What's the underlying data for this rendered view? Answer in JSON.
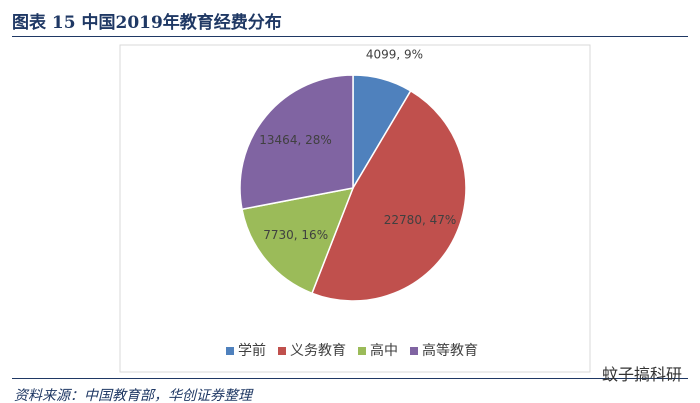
{
  "header": {
    "title": "图表 15 中国2019年教育经费分布"
  },
  "chart_data": {
    "type": "pie",
    "categories": [
      "学前",
      "义务教育",
      "高中",
      "高等教育"
    ],
    "values": [
      4099,
      22780,
      7730,
      13464
    ],
    "value_labels": [
      "4099, 9%",
      "22780, 47%",
      "7730, 16%",
      "13464, 28%"
    ],
    "colors": [
      "#4f81bd",
      "#c0504d",
      "#9bbb59",
      "#8064a2"
    ],
    "legend": "bottom"
  },
  "footer": {
    "source": "资料来源：中国教育部，华创证券整理",
    "watermark": "蚊子搞科研"
  }
}
